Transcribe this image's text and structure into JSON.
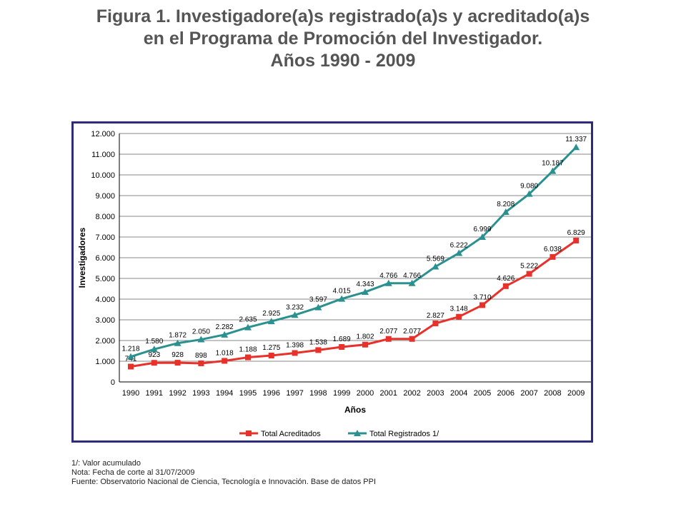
{
  "title": {
    "line1": "Figura 1. Investigadore(a)s registrado(a)s y acreditado(a)s",
    "line2": "en el Programa de Promoción del Investigador.",
    "line3": "Años 1990 - 2009"
  },
  "notes": [
    "1/:  Valor acumulado",
    "Nota: Fecha de corte al 31/07/2009",
    "Fuente: Observatorio Nacional de Ciencia, Tecnología e Innovación. Base de datos PPI"
  ],
  "colors": {
    "acreditados": "#e8312a",
    "registrados": "#2a9090",
    "frame": "#2e2b7c",
    "grid": "#888888"
  },
  "chart_data": {
    "type": "line",
    "title": "",
    "xlabel": "Años",
    "ylabel": "Investigadores",
    "ylim": [
      0,
      12000
    ],
    "ytick_labels": [
      "0",
      "1.000",
      "2.000",
      "3.000",
      "4.000",
      "5.000",
      "6.000",
      "7.000",
      "8.000",
      "9.000",
      "10.000",
      "11.000",
      "12.000"
    ],
    "categories": [
      "1990",
      "1991",
      "1992",
      "1993",
      "1994",
      "1995",
      "1996",
      "1997",
      "1998",
      "1999",
      "2000",
      "2001",
      "2002",
      "2003",
      "2004",
      "2005",
      "2006",
      "2007",
      "2008",
      "2009"
    ],
    "grid": true,
    "legend_position": "bottom",
    "series": [
      {
        "name": "Total Acreditados",
        "marker": "square",
        "values": [
          741,
          923,
          928,
          898,
          1018,
          1188,
          1275,
          1398,
          1538,
          1689,
          1802,
          2077,
          2077,
          2827,
          3148,
          3710,
          4626,
          5222,
          6038,
          6829
        ],
        "labels": [
          "741",
          "923",
          "928",
          "898",
          "1.018",
          "1.188",
          "1.275",
          "1.398",
          "1.538",
          "1.689",
          "1.802",
          "2.077",
          "2.077",
          "2.827",
          "3.148",
          "3.710",
          "4.626",
          "5.222",
          "6.038",
          "6.829"
        ]
      },
      {
        "name": "Total Registrados  1/",
        "marker": "triangle",
        "values": [
          1218,
          1580,
          1872,
          2050,
          2282,
          2635,
          2925,
          3232,
          3597,
          4015,
          4343,
          4766,
          4766,
          5569,
          6222,
          6999,
          8208,
          9080,
          10187,
          11337
        ],
        "labels": [
          "1.218",
          "1.580",
          "1.872",
          "2.050",
          "2.282",
          "2.635",
          "2.925",
          "3.232",
          "3.597",
          "4.015",
          "4.343",
          "4.766",
          "4.766",
          "5.569",
          "6.222",
          "6.999",
          "8.208",
          "9.080",
          "10.187",
          "11.337"
        ]
      }
    ]
  }
}
